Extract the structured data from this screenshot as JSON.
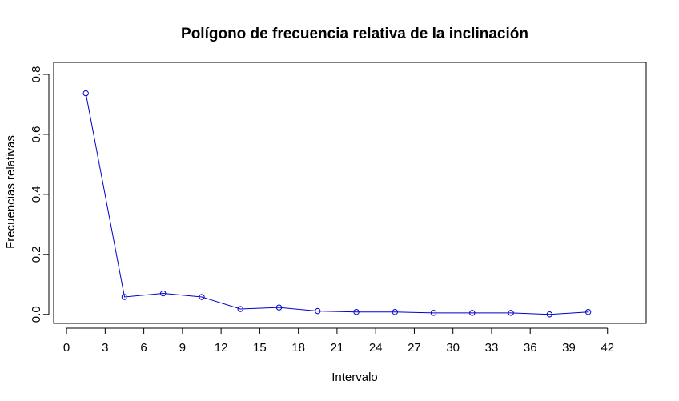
{
  "chart_data": {
    "type": "line",
    "title": "Polígono de frecuencia relativa de la inclinación",
    "xlabel": "Intervalo",
    "ylabel": "Frecuencias relativas",
    "xlim": [
      -1,
      45
    ],
    "ylim": [
      -0.03,
      0.84
    ],
    "x_ticks": [
      0,
      3,
      6,
      9,
      12,
      15,
      18,
      21,
      24,
      27,
      30,
      33,
      36,
      39,
      42
    ],
    "x_tick_labels": [
      "0",
      "3",
      "6",
      "9",
      "12",
      "15",
      "18",
      "21",
      "24",
      "27",
      "30",
      "33",
      "36",
      "39",
      "42"
    ],
    "y_ticks": [
      0.0,
      0.2,
      0.4,
      0.6,
      0.8
    ],
    "y_tick_labels": [
      "0.0",
      "0.2",
      "0.4",
      "0.6",
      "0.8"
    ],
    "grid": false,
    "line_color": "#0000cc",
    "marker": "open-circle",
    "series": [
      {
        "x": [
          1.5,
          4.5,
          7.5,
          10.5,
          13.5,
          16.5,
          19.5,
          22.5,
          25.5,
          28.5,
          31.5,
          34.5,
          37.5,
          40.5
        ],
        "y": [
          0.737,
          0.058,
          0.07,
          0.058,
          0.018,
          0.023,
          0.011,
          0.008,
          0.008,
          0.005,
          0.005,
          0.005,
          0.0,
          0.008
        ]
      }
    ]
  }
}
